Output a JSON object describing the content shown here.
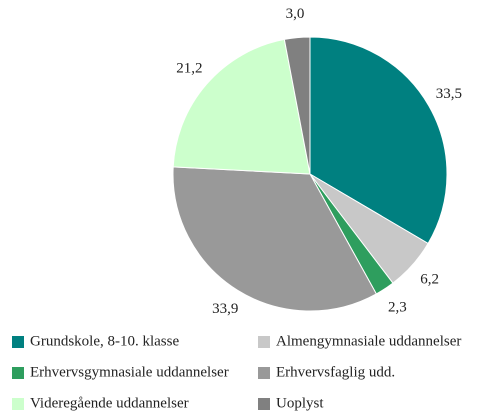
{
  "chart_data": {
    "type": "pie",
    "categories": [
      "Grundskole, 8-10. klasse",
      "Almengymnasiale uddannelser",
      "Erhvervsgymnasiale uddannelser",
      "Erhvervsfaglig udd.",
      "Videregående uddannelser",
      "Uoplyst"
    ],
    "values": [
      33.5,
      6.2,
      2.3,
      33.9,
      21.2,
      3.0
    ],
    "value_labels": [
      "33,5",
      "6,2",
      "2,3",
      "33,9",
      "21,2",
      "3,0"
    ],
    "colors": [
      "#008080",
      "#c8c8c8",
      "#2e9e5e",
      "#999999",
      "#ccffcc",
      "#808080"
    ]
  }
}
